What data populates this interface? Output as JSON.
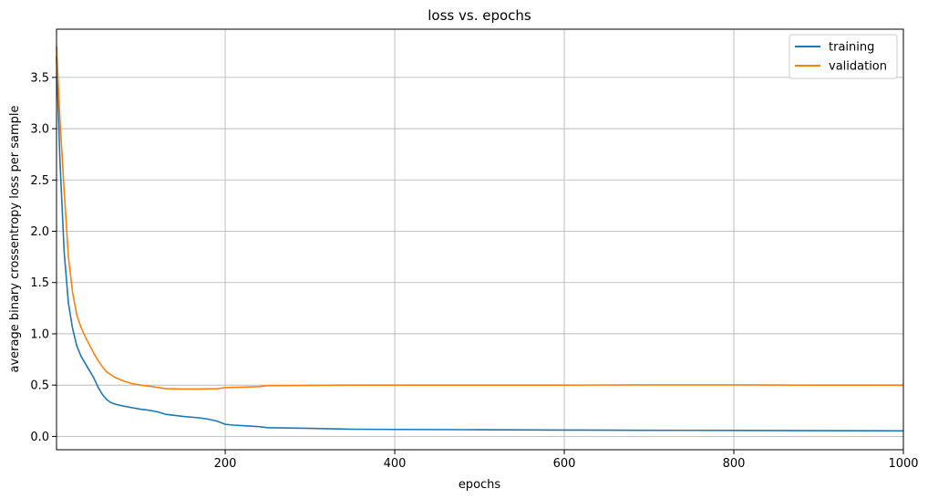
{
  "chart_data": {
    "type": "line",
    "title": "loss vs. epochs",
    "xlabel": "epochs",
    "ylabel": "average binary crossentropy loss per sample",
    "xlim": [
      1,
      1000
    ],
    "ylim": [
      -0.13,
      3.97
    ],
    "xticks": [
      200,
      400,
      600,
      800,
      1000
    ],
    "yticks": [
      0.0,
      0.5,
      1.0,
      1.5,
      2.0,
      2.5,
      3.0,
      3.5
    ],
    "xtick_labels": [
      "200",
      "400",
      "600",
      "800",
      "1000"
    ],
    "ytick_labels": [
      "0.0",
      "0.5",
      "1.0",
      "1.5",
      "2.0",
      "2.5",
      "3.0",
      "3.5"
    ],
    "grid": true,
    "legend_position": "top-right",
    "series": [
      {
        "name": "training",
        "color": "#1f77b4",
        "points": [
          [
            1,
            3.7
          ],
          [
            5,
            2.7
          ],
          [
            10,
            1.8
          ],
          [
            15,
            1.3
          ],
          [
            20,
            1.05
          ],
          [
            25,
            0.88
          ],
          [
            30,
            0.78
          ],
          [
            35,
            0.71
          ],
          [
            40,
            0.64
          ],
          [
            45,
            0.57
          ],
          [
            50,
            0.48
          ],
          [
            55,
            0.41
          ],
          [
            60,
            0.36
          ],
          [
            65,
            0.33
          ],
          [
            70,
            0.315
          ],
          [
            80,
            0.295
          ],
          [
            90,
            0.28
          ],
          [
            100,
            0.265
          ],
          [
            110,
            0.255
          ],
          [
            120,
            0.24
          ],
          [
            130,
            0.215
          ],
          [
            140,
            0.205
          ],
          [
            150,
            0.195
          ],
          [
            160,
            0.188
          ],
          [
            170,
            0.18
          ],
          [
            180,
            0.168
          ],
          [
            190,
            0.15
          ],
          [
            200,
            0.118
          ],
          [
            210,
            0.11
          ],
          [
            220,
            0.105
          ],
          [
            240,
            0.095
          ],
          [
            250,
            0.085
          ],
          [
            300,
            0.078
          ],
          [
            350,
            0.07
          ],
          [
            400,
            0.068
          ],
          [
            500,
            0.065
          ],
          [
            600,
            0.062
          ],
          [
            700,
            0.06
          ],
          [
            800,
            0.058
          ],
          [
            900,
            0.056
          ],
          [
            1000,
            0.054
          ]
        ]
      },
      {
        "name": "validation",
        "color": "#ff7f0e",
        "points": [
          [
            1,
            3.8
          ],
          [
            5,
            3.1
          ],
          [
            10,
            2.4
          ],
          [
            15,
            1.75
          ],
          [
            20,
            1.4
          ],
          [
            25,
            1.18
          ],
          [
            30,
            1.06
          ],
          [
            35,
            0.97
          ],
          [
            40,
            0.89
          ],
          [
            45,
            0.81
          ],
          [
            50,
            0.74
          ],
          [
            55,
            0.68
          ],
          [
            60,
            0.63
          ],
          [
            70,
            0.575
          ],
          [
            80,
            0.54
          ],
          [
            90,
            0.515
          ],
          [
            100,
            0.5
          ],
          [
            110,
            0.49
          ],
          [
            120,
            0.478
          ],
          [
            130,
            0.465
          ],
          [
            150,
            0.462
          ],
          [
            170,
            0.462
          ],
          [
            190,
            0.465
          ],
          [
            200,
            0.475
          ],
          [
            220,
            0.48
          ],
          [
            240,
            0.485
          ],
          [
            250,
            0.495
          ],
          [
            300,
            0.498
          ],
          [
            350,
            0.5
          ],
          [
            400,
            0.5
          ],
          [
            500,
            0.5
          ],
          [
            600,
            0.5
          ],
          [
            700,
            0.502
          ],
          [
            800,
            0.502
          ],
          [
            900,
            0.5
          ],
          [
            1000,
            0.5
          ]
        ]
      }
    ]
  }
}
